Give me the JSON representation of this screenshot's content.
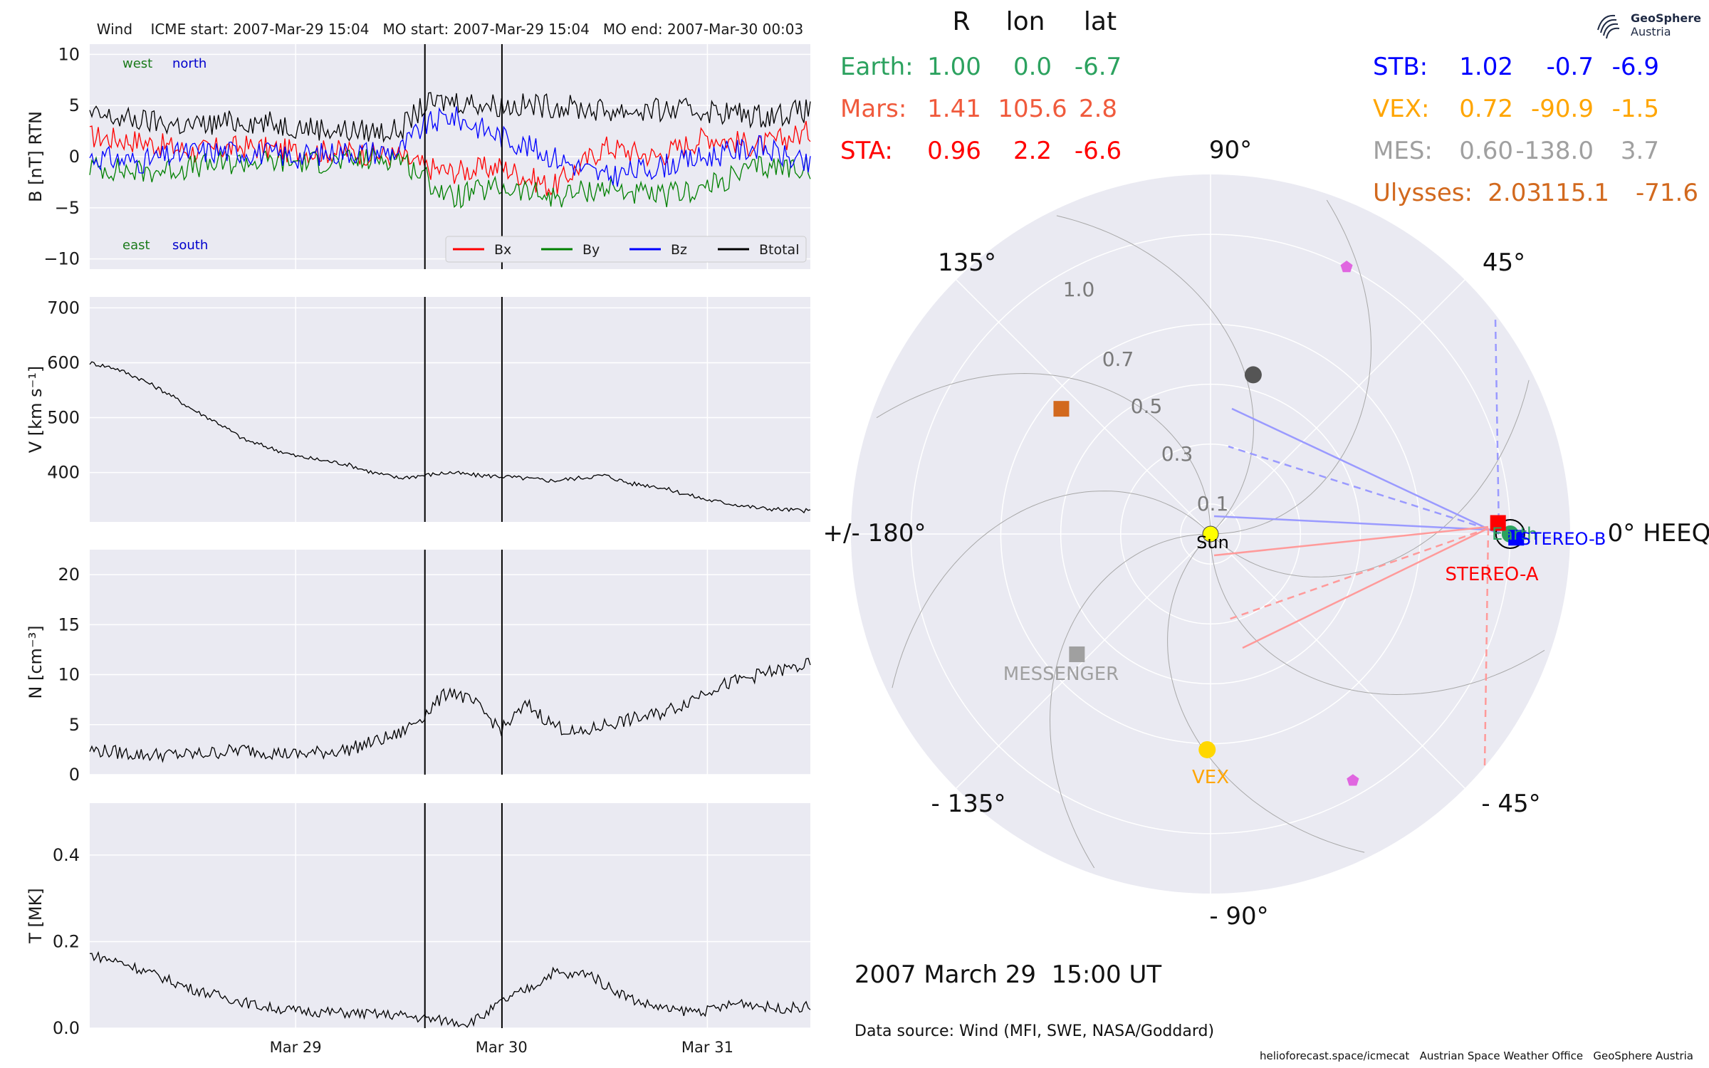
{
  "header": {
    "title": "Wind    ICME start: 2007-Mar-29 15:04   MO start: 2007-Mar-29 15:04   MO end: 2007-Mar-30 00:03"
  },
  "logo": {
    "name": "GeoSphere",
    "sub": "Austria"
  },
  "footer": {
    "date": "2007 March 29  15:00 UT",
    "source": "Data source: Wind (MFI, SWE, NASA/Goddard)",
    "credits": "helioforecast.space/icmecat   Austrian Space Weather Office   GeoSphere Austria"
  },
  "table": {
    "headers": [
      "R",
      "lon",
      "lat"
    ],
    "rows": [
      {
        "name": "Earth:",
        "R": "1.00",
        "lon": "0.0",
        "lat": "-6.7",
        "color": "#2ca25f"
      },
      {
        "name": "Mars:",
        "R": "1.41",
        "lon": "105.6",
        "lat": "2.8",
        "color": "#f05a3c"
      },
      {
        "name": "STA:",
        "R": "0.96",
        "lon": "2.2",
        "lat": "-6.6",
        "color": "#ff0000"
      },
      {
        "name": "STB:",
        "R": "1.02",
        "lon": "-0.7",
        "lat": "-6.9",
        "color": "#0000ff"
      },
      {
        "name": "VEX:",
        "R": "0.72",
        "lon": "-90.9",
        "lat": "-1.5",
        "color": "#ffa500"
      },
      {
        "name": "MES:",
        "R": "0.60",
        "lon": "-138.0",
        "lat": "3.7",
        "color": "#a0a0a0"
      },
      {
        "name": "Ulysses:",
        "R": "2.03",
        "lon": "115.1",
        "lat": "-71.6",
        "color": "#d2691e"
      }
    ]
  },
  "chart_data": [
    {
      "type": "line",
      "ylabel": "B [nT] RTN",
      "ylim": [
        -11,
        11
      ],
      "yticks": [
        "10",
        "5",
        "0",
        "−5",
        "−10"
      ],
      "xticks": [
        "Mar 29",
        "Mar 30",
        "Mar 31"
      ],
      "xrange": [
        "2007-03-28 00:00",
        "2007-03-31 12:00"
      ],
      "event_lines": [
        "2007-03-29 15:04",
        "2007-03-30 00:03"
      ],
      "annotations": [
        "west",
        "north",
        "east",
        "south"
      ],
      "legend_position": "lower right",
      "series": [
        {
          "name": "Bx",
          "color": "#ff0000",
          "x_hours": [
            0,
            6,
            12,
            18,
            24,
            30,
            36,
            39,
            42,
            48,
            54,
            60,
            66,
            72,
            78,
            84
          ],
          "values": [
            2,
            1.5,
            0.5,
            1,
            0.5,
            0.5,
            0,
            -1,
            -1.5,
            -1,
            -3,
            1,
            0,
            2,
            1,
            2.5
          ]
        },
        {
          "name": "By",
          "color": "#008000",
          "x_hours": [
            0,
            6,
            12,
            18,
            24,
            30,
            36,
            39,
            42,
            48,
            54,
            60,
            66,
            72,
            78,
            84
          ],
          "values": [
            -1,
            -1.5,
            -1,
            -0.5,
            -0.5,
            -0.5,
            0,
            -2,
            -4,
            -3,
            -4,
            -3,
            -4,
            -3,
            -1,
            -1
          ]
        },
        {
          "name": "Bz",
          "color": "#0000ff",
          "x_hours": [
            0,
            6,
            12,
            18,
            24,
            30,
            36,
            39,
            42,
            48,
            54,
            60,
            66,
            72,
            78,
            84
          ],
          "values": [
            0,
            -0.5,
            0.5,
            0.5,
            0,
            0.5,
            0.5,
            3,
            4,
            2,
            0,
            -2,
            -1,
            0,
            1,
            -1
          ]
        },
        {
          "name": "Btotal",
          "color": "#000000",
          "x_hours": [
            0,
            6,
            12,
            18,
            24,
            30,
            36,
            39,
            42,
            48,
            54,
            60,
            66,
            72,
            78,
            84
          ],
          "values": [
            4,
            3.5,
            3,
            3.5,
            3,
            2.5,
            2.5,
            5,
            5.5,
            5,
            5,
            4.5,
            4.5,
            4.5,
            4,
            4.5
          ]
        }
      ]
    },
    {
      "type": "line",
      "ylabel": "V [km s⁻¹]",
      "ylim": [
        310,
        720
      ],
      "yticks": [
        "700",
        "600",
        "500",
        "400"
      ],
      "xticks": [
        "Mar 29",
        "Mar 30",
        "Mar 31"
      ],
      "series": [
        {
          "name": "",
          "color": "#000000",
          "x_hours": [
            0,
            3,
            6,
            9,
            12,
            15,
            18,
            22,
            24,
            30,
            33,
            36,
            39,
            42,
            45,
            48,
            54,
            60,
            63,
            66,
            72,
            78,
            84
          ],
          "values": [
            600,
            590,
            570,
            545,
            515,
            490,
            460,
            440,
            430,
            415,
            400,
            390,
            395,
            400,
            395,
            393,
            385,
            395,
            380,
            375,
            350,
            335,
            330
          ]
        }
      ]
    },
    {
      "type": "line",
      "ylabel": "N [cm⁻³]",
      "ylim": [
        0,
        22.5
      ],
      "yticks": [
        "20",
        "15",
        "10",
        "5",
        "0"
      ],
      "xticks": [
        "Mar 29",
        "Mar 30",
        "Mar 31"
      ],
      "series": [
        {
          "name": "",
          "color": "#000000",
          "x_hours": [
            0,
            6,
            12,
            18,
            24,
            30,
            36,
            39,
            42,
            45,
            48,
            51,
            54,
            57,
            60,
            63,
            66,
            69,
            72,
            78,
            84
          ],
          "values": [
            2.5,
            2,
            2,
            2.5,
            2,
            2.5,
            4,
            6,
            8.5,
            7,
            4.5,
            7,
            5,
            4,
            5,
            5.5,
            6,
            7,
            8.5,
            10,
            11
          ]
        }
      ]
    },
    {
      "type": "line",
      "ylabel": "T [MK]",
      "ylim": [
        0,
        0.52
      ],
      "yticks": [
        "0.4",
        "0.2",
        "0.0"
      ],
      "xticks": [
        "Mar 29",
        "Mar 30",
        "Mar 31"
      ],
      "series": [
        {
          "name": "",
          "color": "#000000",
          "x_hours": [
            0,
            4,
            8,
            12,
            16,
            20,
            24,
            30,
            36,
            40,
            44,
            46,
            48,
            52,
            54,
            56,
            58,
            60,
            64,
            66,
            68,
            72,
            76,
            80,
            84
          ],
          "values": [
            0.17,
            0.15,
            0.12,
            0.09,
            0.07,
            0.05,
            0.04,
            0.035,
            0.03,
            0.02,
            0.012,
            0.03,
            0.06,
            0.1,
            0.13,
            0.12,
            0.13,
            0.1,
            0.06,
            0.05,
            0.04,
            0.04,
            0.06,
            0.045,
            0.05
          ]
        }
      ]
    },
    {
      "type": "polar",
      "frame": "HEEQ",
      "theta_labels": [
        "0° HEEQ",
        "45°",
        "90°",
        "135°",
        "+/- 180°",
        "- 135°",
        "- 90°",
        "- 45°"
      ],
      "r_labels": [
        "0.1",
        "0.3",
        "0.5",
        "0.7",
        "1.0"
      ],
      "bodies": [
        {
          "label": "Sun",
          "r_au": 0.0,
          "lon_deg": 0,
          "color": "#ffff00",
          "marker": "circle"
        },
        {
          "label": "Earth",
          "r_au": 1.0,
          "lon_deg": 0.0,
          "color": "#2ca25f",
          "marker": "circle"
        },
        {
          "label": "STEREO-A",
          "r_au": 0.96,
          "lon_deg": 2.2,
          "color": "#ff0000",
          "marker": "square"
        },
        {
          "label": "STEREO-B",
          "r_au": 1.02,
          "lon_deg": -0.7,
          "color": "#0000ff",
          "marker": "square"
        },
        {
          "label": "VEX",
          "r_au": 0.72,
          "lon_deg": -90.9,
          "color": "#ffd700",
          "marker": "circle"
        },
        {
          "label": "MESSENGER",
          "r_au": 0.6,
          "lon_deg": -138.0,
          "color": "#a0a0a0",
          "marker": "square"
        },
        {
          "label": "",
          "r_au": 0.55,
          "lon_deg": 75,
          "color": "#555555",
          "marker": "circle"
        },
        {
          "label": "",
          "r_au": 0.65,
          "lon_deg": 140,
          "color": "#d2691e",
          "marker": "square"
        },
        {
          "label": "",
          "r_au": 1.0,
          "lon_deg": 63,
          "color": "#e066e0",
          "marker": "pentagon"
        },
        {
          "label": "",
          "r_au": 0.95,
          "lon_deg": -60,
          "color": "#e066e0",
          "marker": "pentagon"
        }
      ]
    }
  ]
}
